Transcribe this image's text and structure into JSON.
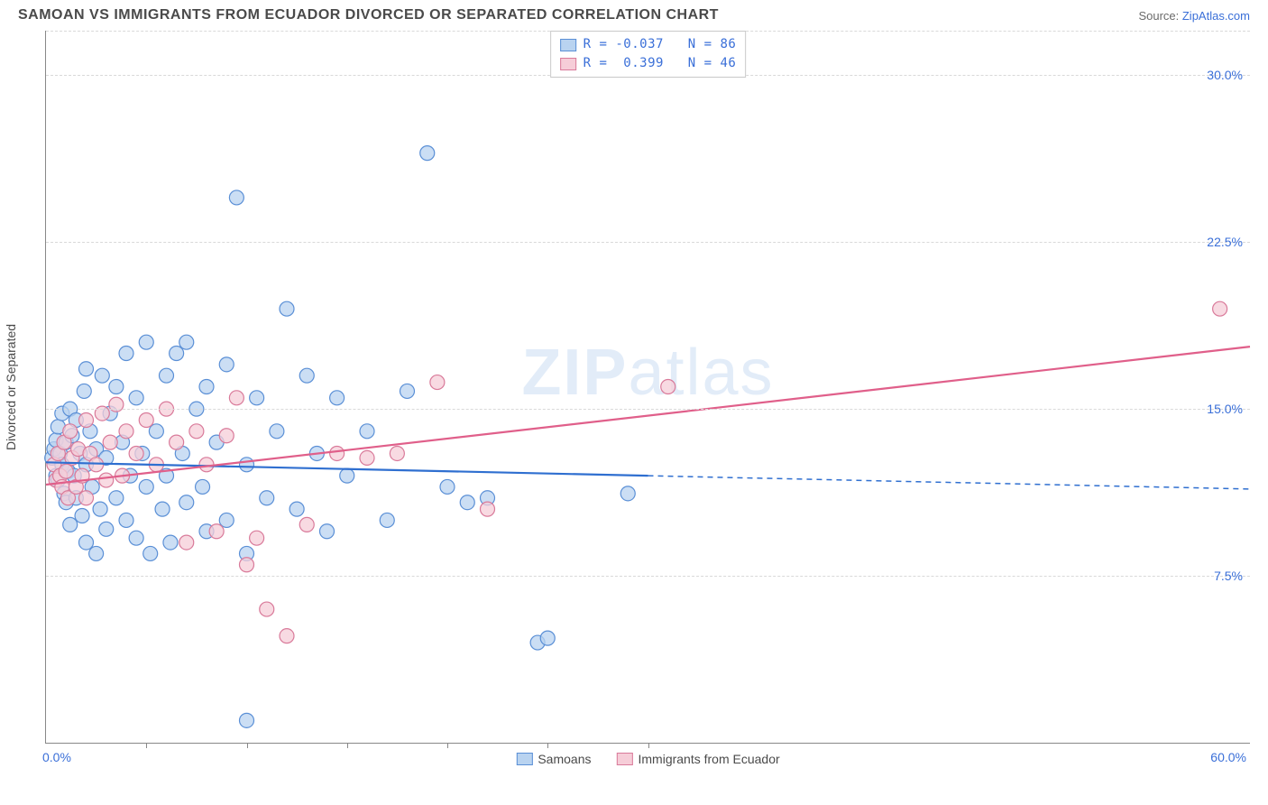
{
  "header": {
    "title": "SAMOAN VS IMMIGRANTS FROM ECUADOR DIVORCED OR SEPARATED CORRELATION CHART",
    "source_prefix": "Source: ",
    "source_name": "ZipAtlas.com"
  },
  "chart": {
    "ylabel": "Divorced or Separated",
    "watermark_a": "ZIP",
    "watermark_b": "atlas",
    "xlim": [
      0,
      60
    ],
    "ylim": [
      0,
      32
    ],
    "xtick_labels": {
      "0": "0.0%",
      "60": "60.0%"
    },
    "inner_xtick_positions": [
      5,
      10,
      15,
      20,
      25,
      30
    ],
    "ytick_positions": [
      7.5,
      15.0,
      22.5,
      30.0
    ],
    "ytick_labels": [
      "7.5%",
      "15.0%",
      "22.5%",
      "30.0%"
    ],
    "grid_color": "#d9d9d9",
    "background": "#ffffff",
    "series": [
      {
        "key": "samoans",
        "label": "Samoans",
        "R": "-0.037",
        "N": "86",
        "point_fill": "#b9d3f0",
        "point_stroke": "#5a8fd6",
        "line_color": "#2f6fd0",
        "line_solid_xmax": 30,
        "trend": {
          "x1": 0,
          "y1": 12.6,
          "x2": 60,
          "y2": 11.4
        },
        "points": [
          [
            0.3,
            12.8
          ],
          [
            0.4,
            13.2
          ],
          [
            0.5,
            12.0
          ],
          [
            0.5,
            13.6
          ],
          [
            0.6,
            14.2
          ],
          [
            0.6,
            11.8
          ],
          [
            0.7,
            13.0
          ],
          [
            0.8,
            12.5
          ],
          [
            0.8,
            14.8
          ],
          [
            0.9,
            11.2
          ],
          [
            1.0,
            13.5
          ],
          [
            1.0,
            10.8
          ],
          [
            1.1,
            12.2
          ],
          [
            1.2,
            15.0
          ],
          [
            1.2,
            9.8
          ],
          [
            1.3,
            13.8
          ],
          [
            1.4,
            12.0
          ],
          [
            1.5,
            11.0
          ],
          [
            1.5,
            14.5
          ],
          [
            1.7,
            13.0
          ],
          [
            1.8,
            10.2
          ],
          [
            1.9,
            15.8
          ],
          [
            2.0,
            12.5
          ],
          [
            2.0,
            9.0
          ],
          [
            2.2,
            14.0
          ],
          [
            2.3,
            11.5
          ],
          [
            2.5,
            13.2
          ],
          [
            2.5,
            8.5
          ],
          [
            2.7,
            10.5
          ],
          [
            2.8,
            16.5
          ],
          [
            3.0,
            12.8
          ],
          [
            3.0,
            9.6
          ],
          [
            3.2,
            14.8
          ],
          [
            3.5,
            11.0
          ],
          [
            3.5,
            16.0
          ],
          [
            3.8,
            13.5
          ],
          [
            4.0,
            10.0
          ],
          [
            4.0,
            17.5
          ],
          [
            4.2,
            12.0
          ],
          [
            4.5,
            9.2
          ],
          [
            4.5,
            15.5
          ],
          [
            4.8,
            13.0
          ],
          [
            5.0,
            18.0
          ],
          [
            5.0,
            11.5
          ],
          [
            5.2,
            8.5
          ],
          [
            5.5,
            14.0
          ],
          [
            5.8,
            10.5
          ],
          [
            6.0,
            16.5
          ],
          [
            6.0,
            12.0
          ],
          [
            6.2,
            9.0
          ],
          [
            6.5,
            17.5
          ],
          [
            6.8,
            13.0
          ],
          [
            7.0,
            10.8
          ],
          [
            7.0,
            18.0
          ],
          [
            7.5,
            15.0
          ],
          [
            7.8,
            11.5
          ],
          [
            8.0,
            9.5
          ],
          [
            8.0,
            16.0
          ],
          [
            8.5,
            13.5
          ],
          [
            9.0,
            10.0
          ],
          [
            9.0,
            17.0
          ],
          [
            9.5,
            24.5
          ],
          [
            10.0,
            12.5
          ],
          [
            10.0,
            8.5
          ],
          [
            10.5,
            15.5
          ],
          [
            11.0,
            11.0
          ],
          [
            11.5,
            14.0
          ],
          [
            12.0,
            19.5
          ],
          [
            12.5,
            10.5
          ],
          [
            13.0,
            16.5
          ],
          [
            13.5,
            13.0
          ],
          [
            14.0,
            9.5
          ],
          [
            14.5,
            15.5
          ],
          [
            15.0,
            12.0
          ],
          [
            16.0,
            14.0
          ],
          [
            17.0,
            10.0
          ],
          [
            18.0,
            15.8
          ],
          [
            19.0,
            26.5
          ],
          [
            20.0,
            11.5
          ],
          [
            21.0,
            10.8
          ],
          [
            22.0,
            11.0
          ],
          [
            24.5,
            4.5
          ],
          [
            25.0,
            4.7
          ],
          [
            29.0,
            11.2
          ],
          [
            10.0,
            1.0
          ],
          [
            2.0,
            16.8
          ]
        ]
      },
      {
        "key": "ecuador",
        "label": "Immigrants from Ecuador",
        "R": "0.399",
        "N": "46",
        "point_fill": "#f6cdd8",
        "point_stroke": "#d97a9a",
        "line_color": "#e05f8a",
        "line_solid_xmax": 60,
        "trend": {
          "x1": 0,
          "y1": 11.6,
          "x2": 60,
          "y2": 17.8
        },
        "points": [
          [
            0.4,
            12.5
          ],
          [
            0.5,
            11.8
          ],
          [
            0.6,
            13.0
          ],
          [
            0.7,
            12.0
          ],
          [
            0.8,
            11.5
          ],
          [
            0.9,
            13.5
          ],
          [
            1.0,
            12.2
          ],
          [
            1.1,
            11.0
          ],
          [
            1.2,
            14.0
          ],
          [
            1.3,
            12.8
          ],
          [
            1.5,
            11.5
          ],
          [
            1.6,
            13.2
          ],
          [
            1.8,
            12.0
          ],
          [
            2.0,
            14.5
          ],
          [
            2.0,
            11.0
          ],
          [
            2.2,
            13.0
          ],
          [
            2.5,
            12.5
          ],
          [
            2.8,
            14.8
          ],
          [
            3.0,
            11.8
          ],
          [
            3.2,
            13.5
          ],
          [
            3.5,
            15.2
          ],
          [
            3.8,
            12.0
          ],
          [
            4.0,
            14.0
          ],
          [
            4.5,
            13.0
          ],
          [
            5.0,
            14.5
          ],
          [
            5.5,
            12.5
          ],
          [
            6.0,
            15.0
          ],
          [
            6.5,
            13.5
          ],
          [
            7.0,
            9.0
          ],
          [
            7.5,
            14.0
          ],
          [
            8.0,
            12.5
          ],
          [
            8.5,
            9.5
          ],
          [
            9.0,
            13.8
          ],
          [
            9.5,
            15.5
          ],
          [
            10.0,
            8.0
          ],
          [
            10.5,
            9.2
          ],
          [
            11.0,
            6.0
          ],
          [
            12.0,
            4.8
          ],
          [
            13.0,
            9.8
          ],
          [
            14.5,
            13.0
          ],
          [
            16.0,
            12.8
          ],
          [
            17.5,
            13.0
          ],
          [
            19.5,
            16.2
          ],
          [
            22.0,
            10.5
          ],
          [
            31.0,
            16.0
          ],
          [
            58.5,
            19.5
          ]
        ]
      }
    ]
  },
  "legend_top": {
    "r_label": "R =",
    "n_label": "N ="
  }
}
